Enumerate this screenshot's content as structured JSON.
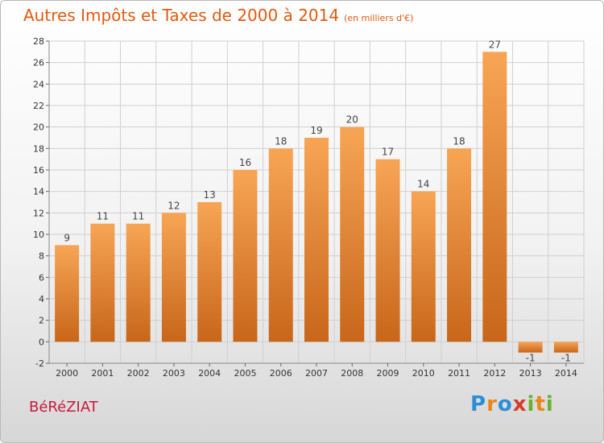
{
  "title": "Autres Impôts et Taxes de 2000 à 2014",
  "subtitle": "(en milliers d'€)",
  "commune": "BéRéZIAT",
  "logo": {
    "letters": [
      "P",
      "r",
      "o",
      "x",
      "i",
      "t",
      "i"
    ],
    "colors": [
      "#2a8fd8",
      "#e8871e",
      "#2a8fd8",
      "#d63a2a",
      "#6ab02e",
      "#e8871e",
      "#6ab02e"
    ]
  },
  "colors": {
    "bar_top": "#f7a555",
    "bar_bottom": "#c8661a",
    "title": "#e05a10",
    "commune": "#c8193c"
  },
  "chart_data": {
    "type": "bar",
    "categories": [
      "2000",
      "2001",
      "2002",
      "2003",
      "2004",
      "2005",
      "2006",
      "2007",
      "2008",
      "2009",
      "2010",
      "2011",
      "2012",
      "2013",
      "2014"
    ],
    "values": [
      9,
      11,
      11,
      12,
      13,
      16,
      18,
      19,
      20,
      17,
      14,
      18,
      27,
      -1,
      -1
    ],
    "ylim": [
      -2,
      28
    ],
    "yticks": [
      -2,
      0,
      2,
      4,
      6,
      8,
      10,
      12,
      14,
      16,
      18,
      20,
      22,
      24,
      26,
      28
    ],
    "grid": true,
    "title": "Autres Impôts et Taxes de 2000 à 2014",
    "xlabel": "",
    "ylabel": ""
  }
}
